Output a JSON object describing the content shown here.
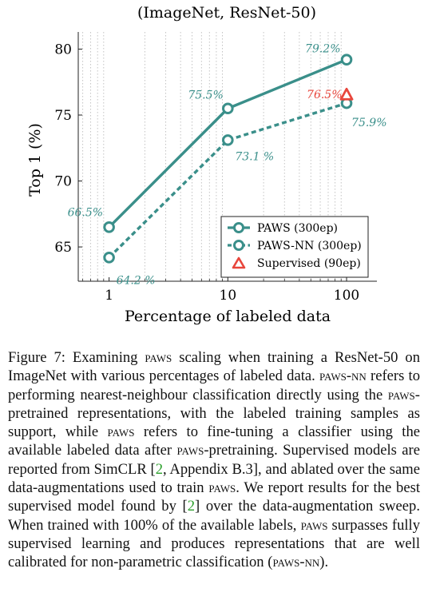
{
  "chart_data": {
    "type": "line",
    "title": "(ImageNet, ResNet-50)",
    "xlabel": "Percentage of labeled data",
    "ylabel": "Top 1 (%)",
    "x_scale": "log",
    "x_ticks": [
      1,
      10,
      100
    ],
    "x_tick_labels": [
      "1",
      "10",
      "100"
    ],
    "y_ticks": [
      65,
      70,
      75,
      80
    ],
    "y_tick_labels": [
      "65",
      "70",
      "75",
      "80"
    ],
    "xlim": [
      0.55,
      180
    ],
    "ylim": [
      62.4,
      81.3
    ],
    "grid": "x-minor-dotted",
    "legend_position": "bottom-right",
    "series": [
      {
        "name": "PAWS (300ep)",
        "color": "#3a8f8a",
        "style": "solid",
        "marker": "circle",
        "x": [
          1,
          10,
          100
        ],
        "y": [
          66.5,
          75.5,
          79.2
        ],
        "labels": [
          "66.5%",
          "75.5%",
          "79.2%"
        ]
      },
      {
        "name": "PAWS-NN (300ep)",
        "color": "#3a8f8a",
        "style": "dashed",
        "marker": "circle",
        "x": [
          1,
          10,
          100
        ],
        "y": [
          64.2,
          73.1,
          75.9
        ],
        "labels": [
          "64.2 %",
          "73.1 %",
          "75.9%"
        ]
      },
      {
        "name": "Supervised (90ep)",
        "color": "#e8463c",
        "style": "none",
        "marker": "triangle",
        "x": [
          100
        ],
        "y": [
          76.5
        ],
        "labels": [
          "76.5%"
        ]
      }
    ]
  },
  "caption": {
    "t1": "Figure 7: Examining ",
    "s1": "paws",
    "t2": " scaling when training a ResNet-50 on ImageNet with various percentages of labeled data. ",
    "s2": "paws-nn",
    "t3": " refers to performing nearest-neighbour classification directly using the ",
    "s3": "paws",
    "t4": "-pretrained representations, with the labeled training samples as support, while ",
    "s4": "paws",
    "t5": " refers to fine-tuning a classifier using the available labeled data after ",
    "s5": "paws",
    "t6": "-pretraining. Supervised models are reported from SimCLR [",
    "r1": "2",
    "t7": ", Appendix B.3], and ablated over the same data-augmentations used to train ",
    "s6": "paws",
    "t8": ". We report results for the best supervised model found by [",
    "r2": "2",
    "t9": "] over the data-augmentation sweep. When trained with 100% of the available labels, ",
    "s7": "paws",
    "t10": " surpasses fully supervised learning and produces representations that are well calibrated for non-parametric classification (",
    "s8": "paws-nn",
    "t11": ")."
  }
}
